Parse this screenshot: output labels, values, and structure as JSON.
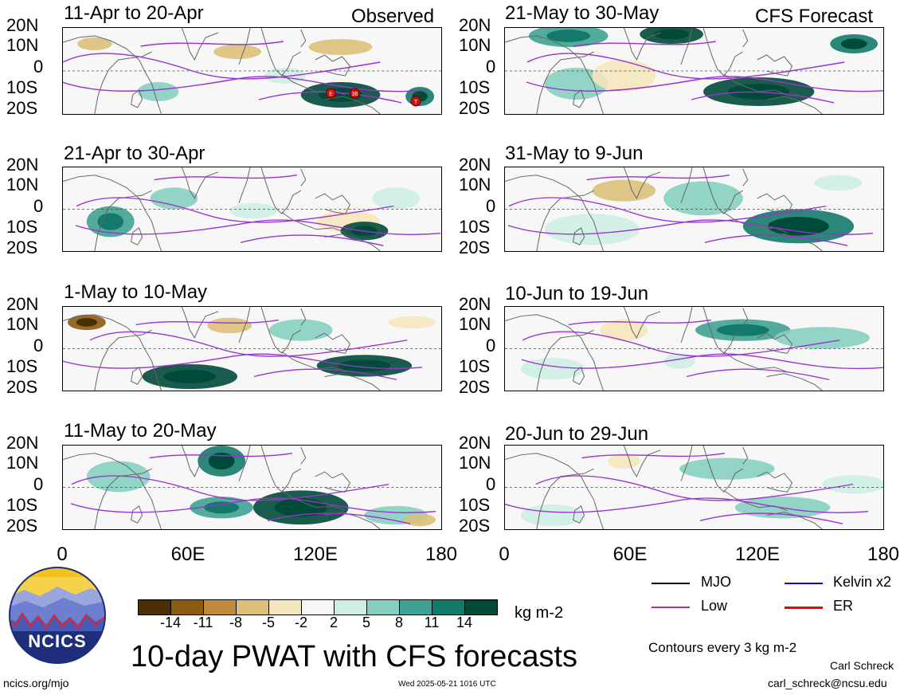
{
  "figure": {
    "main_title": "10-day PWAT with CFS forecasts",
    "units": "kg m-2",
    "contour_note": "Contours every 3 kg m-2",
    "author": "Carl Schreck",
    "email": "carl_schreck@ncsu.edu",
    "website": "ncics.org/mjo",
    "timestamp": "Wed 2025-05-21 1016 UTC",
    "logo_text": "NCICS"
  },
  "column_headers": {
    "left": "Observed",
    "right": "CFS Forecast"
  },
  "panels": {
    "left": [
      {
        "title": "11-Apr to 20-Apr"
      },
      {
        "title": "21-Apr to 30-Apr"
      },
      {
        "title": "1-May to 10-May"
      },
      {
        "title": "11-May to 20-May"
      }
    ],
    "right": [
      {
        "title": "21-May to 30-May"
      },
      {
        "title": "31-May to 9-Jun"
      },
      {
        "title": "10-Jun to 19-Jun"
      },
      {
        "title": "20-Jun to 29-Jun"
      }
    ]
  },
  "axes": {
    "lat_labels": [
      "20N",
      "10N",
      "0",
      "10S",
      "20S"
    ],
    "lon_labels": [
      "0",
      "60E",
      "120E",
      "180"
    ]
  },
  "colorbar": {
    "labels": [
      "-14",
      "-11",
      "-8",
      "-5",
      "-2",
      "2",
      "5",
      "8",
      "11",
      "14"
    ],
    "colors": [
      "#4a3000",
      "#8c5a10",
      "#c08a3a",
      "#dcc079",
      "#f4e6bd",
      "#f7f7f7",
      "#cdeee4",
      "#86cfc0",
      "#40a294",
      "#137a6b",
      "#004a3a"
    ]
  },
  "legend": [
    {
      "label": "MJO",
      "color": "#000000"
    },
    {
      "label": "Kelvin x2",
      "color": "#0000ff"
    },
    {
      "label": "Low",
      "color": "#9a32cd"
    },
    {
      "label": "ER",
      "color": "#ff0000"
    }
  ],
  "markers": [
    "E",
    "36",
    "T"
  ]
}
